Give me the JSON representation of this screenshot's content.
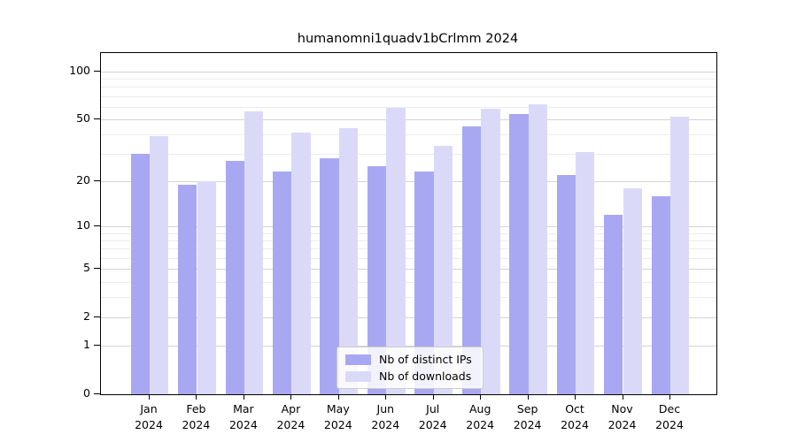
{
  "chart_data": {
    "type": "bar",
    "title": "humanomni1quadv1bCrlmm 2024",
    "year": "2024",
    "categories": [
      "Jan",
      "Feb",
      "Mar",
      "Apr",
      "May",
      "Jun",
      "Jul",
      "Aug",
      "Sep",
      "Oct",
      "Nov",
      "Dec"
    ],
    "series": [
      {
        "name": "Nb of distinct IPs",
        "color": "#a8a8f2",
        "values": [
          30,
          19,
          27,
          23,
          28,
          25,
          23,
          45,
          54,
          22,
          12,
          16
        ]
      },
      {
        "name": "Nb of downloads",
        "color": "#dadaf8",
        "values": [
          39,
          20,
          56,
          41,
          44,
          59,
          34,
          58,
          62,
          31,
          18,
          52
        ]
      }
    ],
    "yscale": "log1p",
    "ylim": [
      0,
      130
    ],
    "yticks": [
      0,
      1,
      2,
      5,
      10,
      20,
      50,
      100
    ],
    "yticks_minor": [
      3,
      4,
      6,
      7,
      8,
      9,
      30,
      40,
      60,
      70,
      80,
      90
    ],
    "grid": true,
    "legend_position": "lower center"
  },
  "colors": {
    "grid_major": "#d4d4d4",
    "grid_minor": "#ececec",
    "spine": "#000000",
    "text": "#000000"
  }
}
